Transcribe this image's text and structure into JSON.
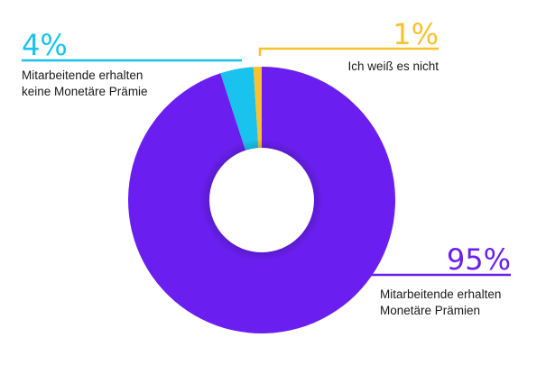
{
  "chart_data": {
    "type": "pie",
    "variant": "donut",
    "slices": [
      {
        "value": 95,
        "percent_label": "95%",
        "label_lines": [
          "Mitarbeitende erhalten",
          "Monetäre Prämien"
        ],
        "color": "#6a1ff0"
      },
      {
        "value": 4,
        "percent_label": "4%",
        "label_lines": [
          "Mitarbeitende erhalten",
          "keine Monetäre Prämie"
        ],
        "color": "#19c3ee"
      },
      {
        "value": 1,
        "percent_label": "1%",
        "label_lines": [
          "Ich weiß es nicht"
        ],
        "color": "#f9c12e"
      }
    ]
  }
}
